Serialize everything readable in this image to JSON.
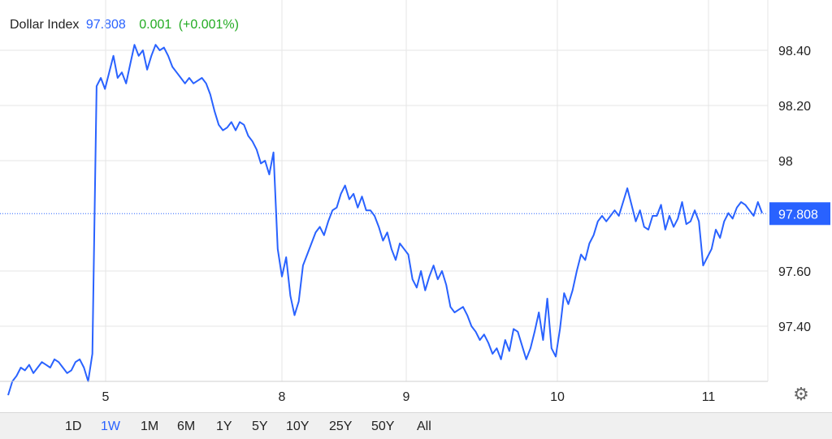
{
  "legend": {
    "name": "Dollar Index",
    "price": "97.808",
    "change": "0.001",
    "change_pct": "(+0.001%)"
  },
  "colors": {
    "line": "#2962ff",
    "price": "#2962ff",
    "change": "#22ab22",
    "grid": "#e6e6e6",
    "badge": "#2962ff"
  },
  "gear_icon": "gear-icon",
  "ranges": [
    {
      "label": "1D",
      "active": false
    },
    {
      "label": "1W",
      "active": true
    },
    {
      "label": "1M",
      "active": false
    },
    {
      "label": "6M",
      "active": false
    },
    {
      "label": "1Y",
      "active": false
    },
    {
      "label": "5Y",
      "active": false
    },
    {
      "label": "10Y",
      "active": false
    },
    {
      "label": "25Y",
      "active": false
    },
    {
      "label": "50Y",
      "active": false
    },
    {
      "label": "All",
      "active": false
    }
  ],
  "chart_data": {
    "type": "line",
    "title": "",
    "xlabel": "",
    "ylabel": "",
    "x_ticks": [
      {
        "label": "5",
        "x": 5
      },
      {
        "label": "8",
        "x": 8
      },
      {
        "label": "9",
        "x": 9
      },
      {
        "label": "10",
        "x": 10
      },
      {
        "label": "11",
        "x": 11
      }
    ],
    "y_ticks": [
      {
        "label": "97.40",
        "value": 97.4
      },
      {
        "label": "97.60",
        "value": 97.6
      },
      {
        "label": "98",
        "value": 98.0
      },
      {
        "label": "98.20",
        "value": 98.2
      },
      {
        "label": "98.40",
        "value": 98.4
      }
    ],
    "ylim": [
      97.2,
      98.5
    ],
    "current_value": 97.808,
    "current_label": "97.808",
    "grid": true,
    "series": [
      {
        "values": [
          97.15,
          97.2,
          97.22,
          97.25,
          97.24,
          97.26,
          97.23,
          97.25,
          97.27,
          97.26,
          97.25,
          97.28,
          97.27,
          97.25,
          97.23,
          97.24,
          97.27,
          97.28,
          97.25,
          97.2,
          97.3,
          98.27,
          98.3,
          98.26,
          98.32,
          98.38,
          98.3,
          98.32,
          98.28,
          98.35,
          98.42,
          98.38,
          98.4,
          98.33,
          98.38,
          98.42,
          98.4,
          98.41,
          98.38,
          98.34,
          98.32,
          98.3,
          98.28,
          98.3,
          98.28,
          98.29,
          98.3,
          98.28,
          98.24,
          98.18,
          98.13,
          98.11,
          98.12,
          98.14,
          98.11,
          98.14,
          98.13,
          98.09,
          98.07,
          98.04,
          97.99,
          98.0,
          97.95,
          98.03,
          97.68,
          97.58,
          97.65,
          97.51,
          97.44,
          97.49,
          97.62,
          97.66,
          97.7,
          97.74,
          97.76,
          97.73,
          97.78,
          97.82,
          97.83,
          97.88,
          97.91,
          97.86,
          97.88,
          97.83,
          97.87,
          97.82,
          97.82,
          97.8,
          97.76,
          97.71,
          97.74,
          97.68,
          97.64,
          97.7,
          97.68,
          97.66,
          97.57,
          97.54,
          97.6,
          97.53,
          97.58,
          97.62,
          97.57,
          97.6,
          97.55,
          97.47,
          97.45,
          97.46,
          97.47,
          97.44,
          97.4,
          97.38,
          97.35,
          97.37,
          97.34,
          97.3,
          97.32,
          97.28,
          97.35,
          97.31,
          97.39,
          97.38,
          97.33,
          97.28,
          97.32,
          97.38,
          97.45,
          97.35,
          97.5,
          97.32,
          97.29,
          97.39,
          97.52,
          97.48,
          97.53,
          97.6,
          97.66,
          97.64,
          97.7,
          97.73,
          97.78,
          97.8,
          97.78,
          97.8,
          97.82,
          97.8,
          97.85,
          97.9,
          97.84,
          97.78,
          97.82,
          97.76,
          97.75,
          97.8,
          97.8,
          97.84,
          97.75,
          97.8,
          97.76,
          97.79,
          97.85,
          97.77,
          97.78,
          97.82,
          97.78,
          97.62,
          97.65,
          97.68,
          97.75,
          97.72,
          97.78,
          97.81,
          97.79,
          97.83,
          97.85,
          97.84,
          97.82,
          97.8,
          97.85,
          97.81
        ]
      }
    ]
  }
}
